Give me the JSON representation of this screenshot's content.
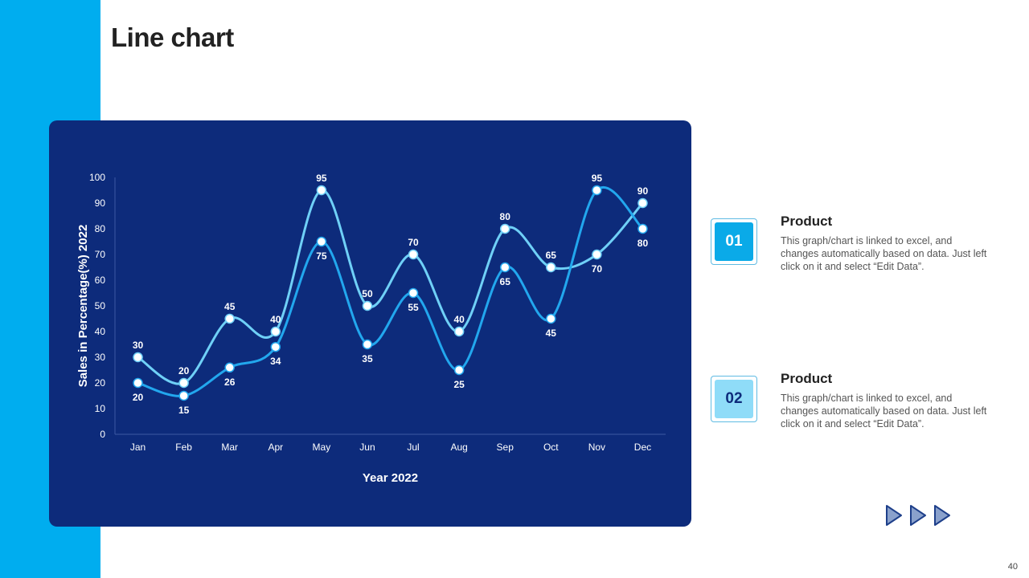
{
  "page": {
    "title": "Line chart",
    "page_number": "40"
  },
  "colors": {
    "band": "#00adef",
    "panel": "#0d2b7b",
    "series_1": "#6fd0f7",
    "series_2": "#22a7ee",
    "box_1": "#0aaae8",
    "box_2": "#8fdcf8"
  },
  "chart_data": {
    "type": "line",
    "title": "",
    "xlabel": "Year 2022",
    "ylabel": "Sales in Percentage(%) 2022",
    "ylim": [
      0,
      100
    ],
    "y_ticks": [
      0,
      10,
      20,
      30,
      40,
      50,
      60,
      70,
      80,
      90,
      100
    ],
    "categories": [
      "Jan",
      "Feb",
      "Mar",
      "Apr",
      "May",
      "Jun",
      "Jul",
      "Aug",
      "Sep",
      "Oct",
      "Nov",
      "Dec"
    ],
    "series": [
      {
        "values": [
          30,
          20,
          45,
          40,
          95,
          50,
          70,
          40,
          80,
          65,
          70,
          90
        ],
        "color": "#6fd0f7"
      },
      {
        "values": [
          20,
          15,
          26,
          34,
          75,
          35,
          55,
          25,
          65,
          45,
          95,
          80
        ],
        "color": "#22a7ee"
      }
    ],
    "smooth": true,
    "markers": true,
    "grid": false,
    "legend": "none"
  },
  "legend_cards": [
    {
      "number": "01",
      "title": "Product",
      "description": "This graph/chart is linked to excel, and changes automatically based on data. Just left click on it and select “Edit Data”."
    },
    {
      "number": "02",
      "title": "Product",
      "description": "This graph/chart is linked to excel, and changes automatically based on data. Just left click on it and select “Edit Data”."
    }
  ],
  "nav": {
    "icons": [
      "play-arrow-icon",
      "play-arrow-icon",
      "play-arrow-icon"
    ]
  }
}
